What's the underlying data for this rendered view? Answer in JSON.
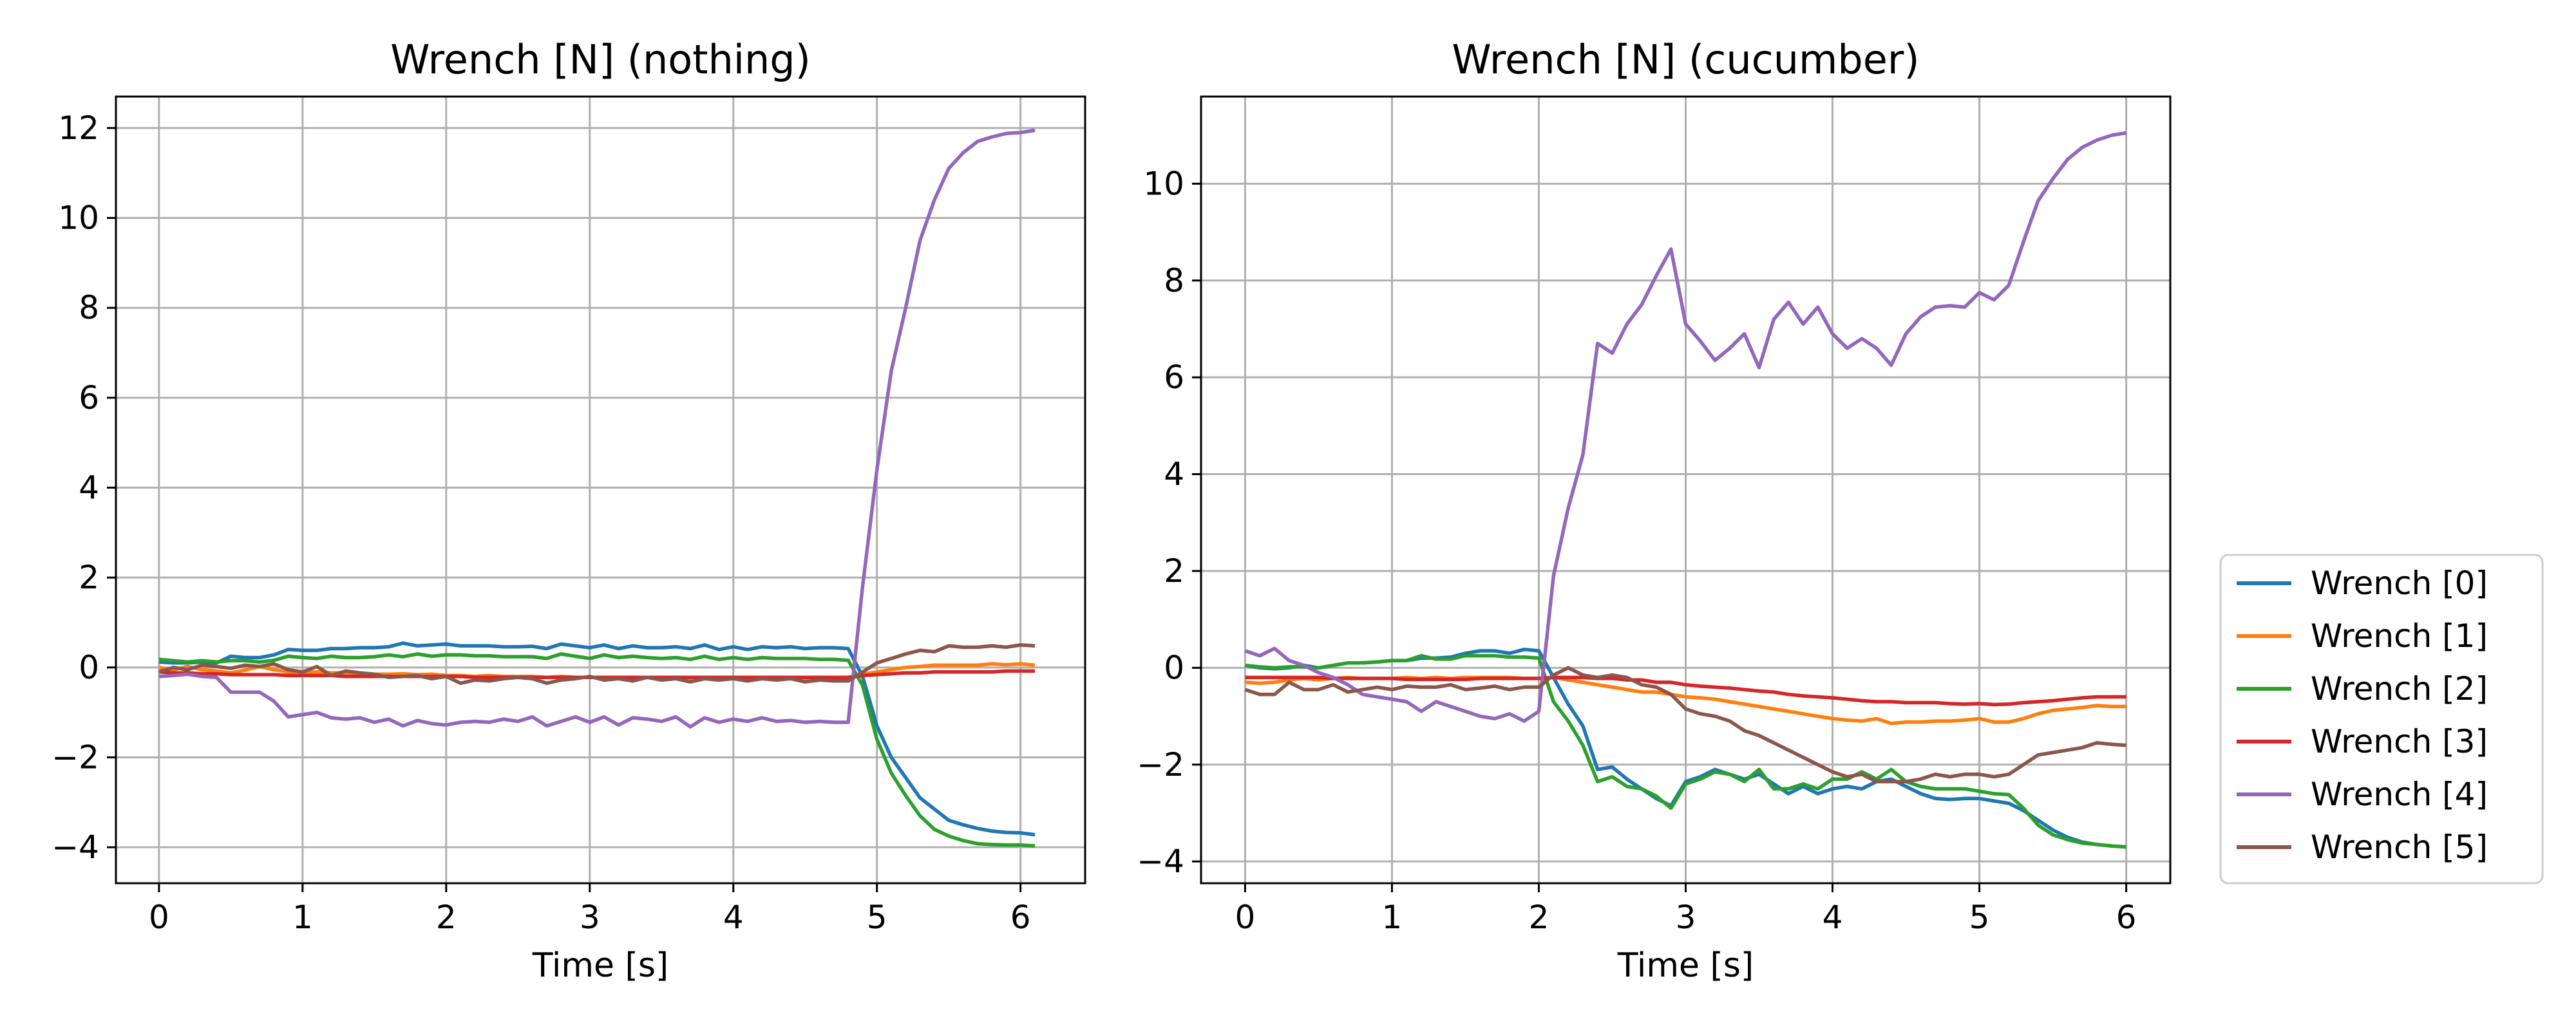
{
  "chart_data": [
    {
      "type": "line",
      "title": "Wrench [N] (nothing)",
      "xlabel": "Time [s]",
      "ylabel": "",
      "xlim": [
        -0.3,
        6.45
      ],
      "ylim": [
        -4.8,
        12.7
      ],
      "xticks": [
        0,
        1,
        2,
        3,
        4,
        5,
        6
      ],
      "yticks": [
        -4,
        -2,
        0,
        2,
        4,
        6,
        8,
        10,
        12
      ],
      "grid": true,
      "x": [
        0,
        0.1,
        0.2,
        0.3,
        0.4,
        0.5,
        0.6,
        0.7,
        0.8,
        0.9,
        1.0,
        1.1,
        1.2,
        1.3,
        1.4,
        1.5,
        1.6,
        1.7,
        1.8,
        1.9,
        2.0,
        2.1,
        2.2,
        2.3,
        2.4,
        2.5,
        2.6,
        2.7,
        2.8,
        2.9,
        3.0,
        3.1,
        3.2,
        3.3,
        3.4,
        3.5,
        3.6,
        3.7,
        3.8,
        3.9,
        4.0,
        4.1,
        4.2,
        4.3,
        4.4,
        4.5,
        4.6,
        4.7,
        4.8,
        4.9,
        5.0,
        5.1,
        5.2,
        5.3,
        5.4,
        5.5,
        5.6,
        5.7,
        5.8,
        5.9,
        6.0,
        6.1
      ],
      "series": [
        {
          "name": "Wrench [0]",
          "color": "#1f77b4",
          "values": [
            0.12,
            0.1,
            0.1,
            0.12,
            0.1,
            0.25,
            0.22,
            0.22,
            0.28,
            0.4,
            0.38,
            0.38,
            0.42,
            0.42,
            0.44,
            0.44,
            0.46,
            0.54,
            0.48,
            0.5,
            0.52,
            0.48,
            0.48,
            0.48,
            0.46,
            0.46,
            0.47,
            0.42,
            0.52,
            0.48,
            0.44,
            0.5,
            0.42,
            0.48,
            0.44,
            0.44,
            0.46,
            0.42,
            0.5,
            0.4,
            0.46,
            0.4,
            0.46,
            0.44,
            0.46,
            0.42,
            0.44,
            0.44,
            0.42,
            -0.2,
            -1.3,
            -2.0,
            -2.45,
            -2.9,
            -3.15,
            -3.4,
            -3.5,
            -3.58,
            -3.64,
            -3.67,
            -3.68,
            -3.72
          ]
        },
        {
          "name": "Wrench [1]",
          "color": "#ff7f0e",
          "values": [
            0.0,
            -0.05,
            0.02,
            -0.05,
            -0.08,
            -0.12,
            -0.06,
            0.02,
            -0.05,
            -0.1,
            -0.12,
            -0.1,
            -0.12,
            -0.12,
            -0.14,
            -0.15,
            -0.15,
            -0.14,
            -0.16,
            -0.15,
            -0.18,
            -0.18,
            -0.2,
            -0.18,
            -0.2,
            -0.2,
            -0.2,
            -0.22,
            -0.2,
            -0.22,
            -0.22,
            -0.22,
            -0.22,
            -0.22,
            -0.22,
            -0.24,
            -0.22,
            -0.24,
            -0.22,
            -0.24,
            -0.22,
            -0.22,
            -0.22,
            -0.22,
            -0.24,
            -0.24,
            -0.22,
            -0.24,
            -0.22,
            -0.15,
            -0.1,
            -0.05,
            0.0,
            0.02,
            0.05,
            0.05,
            0.05,
            0.05,
            0.08,
            0.06,
            0.08,
            0.05
          ]
        },
        {
          "name": "Wrench [2]",
          "color": "#2ca02c",
          "values": [
            0.18,
            0.15,
            0.12,
            0.15,
            0.12,
            0.15,
            0.15,
            0.12,
            0.16,
            0.25,
            0.22,
            0.2,
            0.25,
            0.22,
            0.22,
            0.24,
            0.28,
            0.24,
            0.3,
            0.25,
            0.28,
            0.28,
            0.26,
            0.26,
            0.24,
            0.24,
            0.24,
            0.2,
            0.3,
            0.25,
            0.2,
            0.28,
            0.22,
            0.25,
            0.22,
            0.2,
            0.22,
            0.18,
            0.25,
            0.18,
            0.22,
            0.18,
            0.22,
            0.2,
            0.2,
            0.2,
            0.18,
            0.18,
            0.16,
            -0.4,
            -1.6,
            -2.35,
            -2.85,
            -3.3,
            -3.6,
            -3.75,
            -3.85,
            -3.92,
            -3.94,
            -3.95,
            -3.95,
            -3.97
          ]
        },
        {
          "name": "Wrench [3]",
          "color": "#d62728",
          "values": [
            -0.1,
            -0.12,
            -0.12,
            -0.14,
            -0.14,
            -0.16,
            -0.16,
            -0.16,
            -0.16,
            -0.18,
            -0.18,
            -0.18,
            -0.18,
            -0.2,
            -0.2,
            -0.2,
            -0.2,
            -0.2,
            -0.2,
            -0.2,
            -0.2,
            -0.2,
            -0.22,
            -0.22,
            -0.22,
            -0.22,
            -0.22,
            -0.22,
            -0.22,
            -0.22,
            -0.22,
            -0.22,
            -0.22,
            -0.22,
            -0.22,
            -0.22,
            -0.22,
            -0.22,
            -0.22,
            -0.22,
            -0.22,
            -0.22,
            -0.22,
            -0.22,
            -0.22,
            -0.22,
            -0.22,
            -0.22,
            -0.22,
            -0.18,
            -0.16,
            -0.14,
            -0.12,
            -0.12,
            -0.1,
            -0.1,
            -0.1,
            -0.1,
            -0.1,
            -0.08,
            -0.08,
            -0.08
          ]
        },
        {
          "name": "Wrench [4]",
          "color": "#9467bd",
          "values": [
            -0.2,
            -0.18,
            -0.15,
            -0.2,
            -0.22,
            -0.55,
            -0.55,
            -0.55,
            -0.75,
            -1.1,
            -1.05,
            -1.0,
            -1.12,
            -1.15,
            -1.12,
            -1.22,
            -1.15,
            -1.3,
            -1.18,
            -1.25,
            -1.28,
            -1.22,
            -1.2,
            -1.22,
            -1.15,
            -1.2,
            -1.1,
            -1.3,
            -1.2,
            -1.1,
            -1.22,
            -1.1,
            -1.28,
            -1.12,
            -1.15,
            -1.2,
            -1.1,
            -1.32,
            -1.12,
            -1.22,
            -1.15,
            -1.2,
            -1.12,
            -1.2,
            -1.18,
            -1.22,
            -1.2,
            -1.22,
            -1.22,
            1.8,
            4.4,
            6.6,
            8.0,
            9.5,
            10.4,
            11.1,
            11.45,
            11.7,
            11.8,
            11.88,
            11.9,
            11.95
          ]
        },
        {
          "name": "Wrench [5]",
          "color": "#8c564b",
          "values": [
            -0.1,
            0.0,
            -0.05,
            0.05,
            0.02,
            -0.02,
            0.05,
            0.02,
            0.08,
            -0.05,
            -0.1,
            0.02,
            -0.18,
            -0.08,
            -0.12,
            -0.15,
            -0.22,
            -0.2,
            -0.18,
            -0.25,
            -0.2,
            -0.35,
            -0.28,
            -0.3,
            -0.25,
            -0.22,
            -0.25,
            -0.35,
            -0.28,
            -0.25,
            -0.2,
            -0.28,
            -0.25,
            -0.3,
            -0.22,
            -0.28,
            -0.25,
            -0.32,
            -0.25,
            -0.28,
            -0.25,
            -0.3,
            -0.25,
            -0.28,
            -0.25,
            -0.32,
            -0.28,
            -0.3,
            -0.3,
            -0.1,
            0.1,
            0.2,
            0.3,
            0.38,
            0.35,
            0.48,
            0.45,
            0.45,
            0.48,
            0.45,
            0.5,
            0.48
          ]
        }
      ]
    },
    {
      "type": "line",
      "title": "Wrench [N] (cucumber)",
      "xlabel": "Time [s]",
      "ylabel": "",
      "xlim": [
        -0.3,
        6.3
      ],
      "ylim": [
        -4.45,
        11.8
      ],
      "xticks": [
        0,
        1,
        2,
        3,
        4,
        5,
        6
      ],
      "yticks": [
        -4,
        -2,
        0,
        2,
        4,
        6,
        8,
        10
      ],
      "grid": true,
      "x": [
        0,
        0.1,
        0.2,
        0.3,
        0.4,
        0.5,
        0.6,
        0.7,
        0.8,
        0.9,
        1.0,
        1.1,
        1.2,
        1.3,
        1.4,
        1.5,
        1.6,
        1.7,
        1.8,
        1.9,
        2.0,
        2.1,
        2.2,
        2.3,
        2.4,
        2.5,
        2.6,
        2.7,
        2.8,
        2.9,
        3.0,
        3.1,
        3.2,
        3.3,
        3.4,
        3.5,
        3.6,
        3.7,
        3.8,
        3.9,
        4.0,
        4.1,
        4.2,
        4.3,
        4.4,
        4.5,
        4.6,
        4.7,
        4.8,
        4.9,
        5.0,
        5.1,
        5.2,
        5.3,
        5.4,
        5.5,
        5.6,
        5.7,
        5.8,
        5.9,
        6.0
      ],
      "series": [
        {
          "name": "Wrench [0]",
          "color": "#1f77b4",
          "values": [
            0.05,
            0.0,
            -0.02,
            0.0,
            0.05,
            0.0,
            0.05,
            0.1,
            0.1,
            0.12,
            0.15,
            0.15,
            0.2,
            0.2,
            0.22,
            0.3,
            0.35,
            0.35,
            0.3,
            0.38,
            0.35,
            -0.2,
            -0.75,
            -1.2,
            -2.1,
            -2.05,
            -2.3,
            -2.5,
            -2.7,
            -2.85,
            -2.35,
            -2.25,
            -2.1,
            -2.2,
            -2.3,
            -2.2,
            -2.4,
            -2.6,
            -2.45,
            -2.6,
            -2.5,
            -2.45,
            -2.5,
            -2.35,
            -2.3,
            -2.45,
            -2.6,
            -2.7,
            -2.72,
            -2.7,
            -2.7,
            -2.75,
            -2.8,
            -2.95,
            -3.15,
            -3.35,
            -3.5,
            -3.6,
            -3.65,
            -3.68,
            -3.7
          ]
        },
        {
          "name": "Wrench [1]",
          "color": "#ff7f0e",
          "values": [
            -0.3,
            -0.32,
            -0.3,
            -0.25,
            -0.22,
            -0.25,
            -0.22,
            -0.2,
            -0.22,
            -0.22,
            -0.22,
            -0.2,
            -0.22,
            -0.2,
            -0.22,
            -0.2,
            -0.2,
            -0.2,
            -0.2,
            -0.22,
            -0.22,
            -0.2,
            -0.25,
            -0.3,
            -0.35,
            -0.4,
            -0.45,
            -0.5,
            -0.5,
            -0.55,
            -0.6,
            -0.62,
            -0.65,
            -0.7,
            -0.75,
            -0.8,
            -0.85,
            -0.9,
            -0.95,
            -1.0,
            -1.05,
            -1.08,
            -1.1,
            -1.05,
            -1.15,
            -1.12,
            -1.12,
            -1.1,
            -1.1,
            -1.08,
            -1.05,
            -1.12,
            -1.12,
            -1.05,
            -0.95,
            -0.88,
            -0.85,
            -0.82,
            -0.78,
            -0.8,
            -0.8
          ]
        },
        {
          "name": "Wrench [2]",
          "color": "#2ca02c",
          "values": [
            0.05,
            0.02,
            0.0,
            0.02,
            0.02,
            0.0,
            0.05,
            0.1,
            0.1,
            0.12,
            0.15,
            0.15,
            0.25,
            0.18,
            0.18,
            0.25,
            0.25,
            0.25,
            0.22,
            0.22,
            0.2,
            -0.7,
            -1.1,
            -1.6,
            -2.35,
            -2.25,
            -2.45,
            -2.5,
            -2.65,
            -2.9,
            -2.4,
            -2.3,
            -2.15,
            -2.2,
            -2.35,
            -2.1,
            -2.5,
            -2.5,
            -2.4,
            -2.5,
            -2.3,
            -2.3,
            -2.15,
            -2.3,
            -2.1,
            -2.35,
            -2.45,
            -2.5,
            -2.5,
            -2.5,
            -2.55,
            -2.6,
            -2.62,
            -2.9,
            -3.25,
            -3.45,
            -3.55,
            -3.62,
            -3.65,
            -3.68,
            -3.7
          ]
        },
        {
          "name": "Wrench [3]",
          "color": "#d62728",
          "values": [
            -0.2,
            -0.2,
            -0.2,
            -0.2,
            -0.2,
            -0.2,
            -0.22,
            -0.22,
            -0.22,
            -0.22,
            -0.22,
            -0.24,
            -0.24,
            -0.24,
            -0.24,
            -0.24,
            -0.22,
            -0.22,
            -0.22,
            -0.22,
            -0.22,
            -0.2,
            -0.2,
            -0.2,
            -0.22,
            -0.22,
            -0.25,
            -0.25,
            -0.3,
            -0.3,
            -0.35,
            -0.38,
            -0.4,
            -0.42,
            -0.45,
            -0.48,
            -0.5,
            -0.55,
            -0.58,
            -0.6,
            -0.62,
            -0.65,
            -0.68,
            -0.7,
            -0.7,
            -0.72,
            -0.72,
            -0.72,
            -0.74,
            -0.75,
            -0.74,
            -0.76,
            -0.75,
            -0.72,
            -0.7,
            -0.68,
            -0.65,
            -0.62,
            -0.6,
            -0.6,
            -0.6
          ]
        },
        {
          "name": "Wrench [4]",
          "color": "#9467bd",
          "values": [
            0.35,
            0.25,
            0.4,
            0.15,
            0.05,
            -0.1,
            -0.2,
            -0.35,
            -0.55,
            -0.6,
            -0.65,
            -0.7,
            -0.9,
            -0.7,
            -0.8,
            -0.9,
            -1.0,
            -1.05,
            -0.95,
            -1.1,
            -0.9,
            1.9,
            3.3,
            4.4,
            6.7,
            6.5,
            7.1,
            7.5,
            8.1,
            8.65,
            7.1,
            6.75,
            6.35,
            6.6,
            6.9,
            6.2,
            7.2,
            7.55,
            7.1,
            7.45,
            6.9,
            6.6,
            6.8,
            6.6,
            6.25,
            6.9,
            7.25,
            7.45,
            7.48,
            7.45,
            7.75,
            7.6,
            7.9,
            8.8,
            9.65,
            10.1,
            10.5,
            10.75,
            10.9,
            11.0,
            11.05
          ]
        },
        {
          "name": "Wrench [5]",
          "color": "#8c564b",
          "values": [
            -0.45,
            -0.55,
            -0.55,
            -0.3,
            -0.45,
            -0.45,
            -0.35,
            -0.5,
            -0.45,
            -0.4,
            -0.45,
            -0.38,
            -0.4,
            -0.4,
            -0.35,
            -0.45,
            -0.42,
            -0.38,
            -0.45,
            -0.4,
            -0.4,
            -0.15,
            0.0,
            -0.15,
            -0.2,
            -0.15,
            -0.2,
            -0.35,
            -0.4,
            -0.55,
            -0.85,
            -0.95,
            -1.0,
            -1.1,
            -1.3,
            -1.4,
            -1.55,
            -1.7,
            -1.85,
            -2.0,
            -2.15,
            -2.25,
            -2.2,
            -2.35,
            -2.35,
            -2.35,
            -2.3,
            -2.2,
            -2.25,
            -2.2,
            -2.2,
            -2.25,
            -2.2,
            -2.0,
            -1.8,
            -1.75,
            -1.7,
            -1.65,
            -1.55,
            -1.58,
            -1.6
          ]
        }
      ]
    }
  ],
  "legend": {
    "placement": "lower-right-outside",
    "entries": [
      "Wrench [0]",
      "Wrench [1]",
      "Wrench [2]",
      "Wrench [3]",
      "Wrench [4]",
      "Wrench [5]"
    ],
    "colors": [
      "#1f77b4",
      "#ff7f0e",
      "#2ca02c",
      "#d62728",
      "#9467bd",
      "#8c564b"
    ]
  }
}
